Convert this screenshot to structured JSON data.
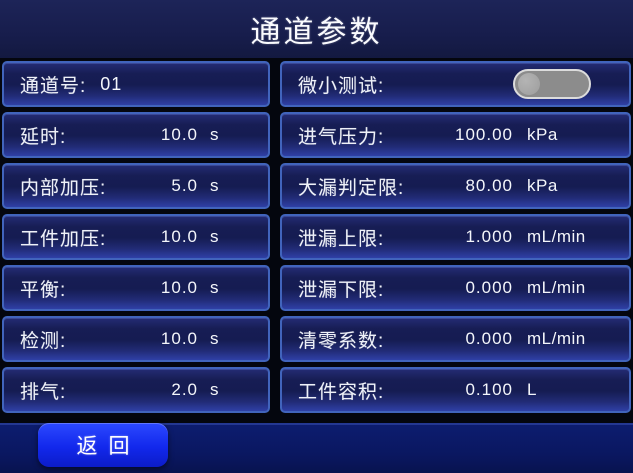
{
  "title": "通道参数",
  "colors": {
    "cell_border": "#4164bc",
    "cell_fill_bottom": "#2f40a6",
    "background_navy": "#151c52",
    "footer_navy": "#0a1760",
    "button_blue": "#1228ec",
    "toggle_track_off": "#8c8c8c",
    "text": "#f4f6fb"
  },
  "left": {
    "rows": [
      {
        "label": "通道号:",
        "value": "01",
        "unit": ""
      },
      {
        "label": "延时:",
        "value": "10.0",
        "unit": "s"
      },
      {
        "label": "内部加压:",
        "value": "5.0",
        "unit": "s"
      },
      {
        "label": "工件加压:",
        "value": "10.0",
        "unit": "s"
      },
      {
        "label": "平衡:",
        "value": "10.0",
        "unit": "s"
      },
      {
        "label": "检测:",
        "value": "10.0",
        "unit": "s"
      },
      {
        "label": "排气:",
        "value": "2.0",
        "unit": "s"
      }
    ]
  },
  "right": {
    "rows": [
      {
        "label": "微小测试:",
        "type": "toggle",
        "toggle_state": "off"
      },
      {
        "label": "进气压力:",
        "value": "100.00",
        "unit": "kPa"
      },
      {
        "label": "大漏判定限:",
        "value": "80.00",
        "unit": "kPa"
      },
      {
        "label": "泄漏上限:",
        "value": "1.000",
        "unit": "mL/min"
      },
      {
        "label": "泄漏下限:",
        "value": "0.000",
        "unit": "mL/min"
      },
      {
        "label": "清零系数:",
        "value": "0.000",
        "unit": "mL/min"
      },
      {
        "label": "工件容积:",
        "value": "0.100",
        "unit": "L"
      }
    ]
  },
  "footer": {
    "back_label": "返回"
  }
}
